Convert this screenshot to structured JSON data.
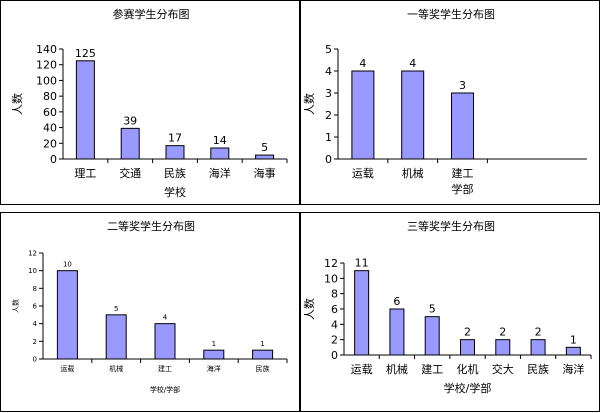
{
  "colors": {
    "bar_fill": "#9999ff",
    "bar_stroke": "#000000",
    "border": "#000000"
  },
  "chart_data": [
    {
      "type": "bar",
      "title": "参赛学生分布图",
      "xlabel": "学校",
      "ylabel": "人数",
      "ylim": [
        0,
        140
      ],
      "yticks": [
        0,
        20,
        40,
        60,
        80,
        100,
        120,
        140
      ],
      "categories": [
        "理工",
        "交通",
        "民族",
        "海洋",
        "海事"
      ],
      "values": [
        125,
        39,
        17,
        14,
        5
      ],
      "data_labels": [
        "125",
        "39",
        "17",
        "14",
        "5"
      ],
      "grid": false
    },
    {
      "type": "bar",
      "title": "一等奖学生分布图",
      "xlabel": "学部",
      "ylabel": "人数",
      "ylim": [
        0,
        5
      ],
      "yticks": [
        0,
        1,
        2,
        3,
        4,
        5
      ],
      "categories": [
        "运载",
        "机械",
        "建工"
      ],
      "values": [
        4,
        4,
        3
      ],
      "data_labels": [
        "4",
        "4",
        "3"
      ],
      "grid": false
    },
    {
      "type": "bar",
      "title": "二等奖学生分布图",
      "xlabel": "学校/学部",
      "ylabel": "人数",
      "ylim": [
        0,
        12
      ],
      "yticks": [
        0,
        2,
        4,
        6,
        8,
        10,
        12
      ],
      "categories": [
        "运载",
        "机械",
        "建工",
        "海洋",
        "民族"
      ],
      "values": [
        10,
        5,
        4,
        1,
        1
      ],
      "data_labels": [
        "10",
        "5",
        "4",
        "1",
        "1"
      ],
      "grid": false
    },
    {
      "type": "bar",
      "title": "三等奖学生分布图",
      "xlabel": "学校/学部",
      "ylabel": "人数",
      "ylim": [
        0,
        12
      ],
      "yticks": [
        0,
        2,
        4,
        6,
        8,
        10,
        12
      ],
      "categories": [
        "运载",
        "机械",
        "建工",
        "化机",
        "交大",
        "民族",
        "海洋"
      ],
      "values": [
        11,
        6,
        5,
        2,
        2,
        2,
        1
      ],
      "data_labels": [
        "11",
        "6",
        "5",
        "2",
        "2",
        "2",
        "1"
      ],
      "grid": false
    }
  ]
}
